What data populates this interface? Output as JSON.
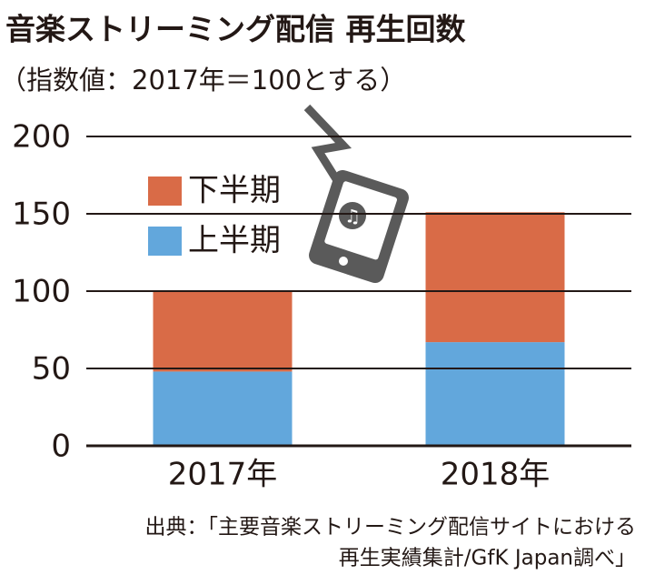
{
  "chart_data": {
    "type": "bar",
    "stacked": true,
    "title": "音楽ストリーミング配信 再生回数",
    "subtitle": "（指数値：2017年＝100とする）",
    "categories": [
      "2017年",
      "2018年"
    ],
    "series": [
      {
        "name": "上半期",
        "color": "#62a7dc",
        "values": [
          48,
          67
        ]
      },
      {
        "name": "下半期",
        "color": "#d96b47",
        "values": [
          52,
          84
        ]
      }
    ],
    "ylim": [
      0,
      200
    ],
    "yticks": [
      0,
      50,
      100,
      150,
      200
    ],
    "grid": true,
    "source": [
      "出典：「主要音楽ストリーミング配信サイトにおける",
      "再生実績集計/GfK Japan調べ」"
    ]
  }
}
